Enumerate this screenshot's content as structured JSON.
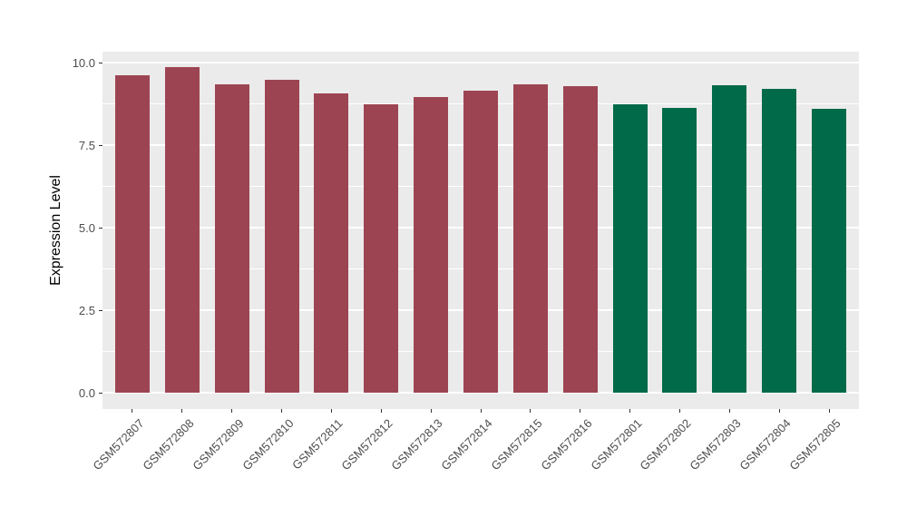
{
  "chart_data": {
    "type": "bar",
    "title": "",
    "xlabel": "",
    "ylabel": "Expression Level",
    "categories": [
      "GSM572807",
      "GSM572808",
      "GSM572809",
      "GSM572810",
      "GSM572811",
      "GSM572812",
      "GSM572813",
      "GSM572814",
      "GSM572815",
      "GSM572816",
      "GSM572801",
      "GSM572802",
      "GSM572803",
      "GSM572804",
      "GSM572805"
    ],
    "values": [
      9.62,
      9.86,
      9.34,
      9.5,
      9.07,
      8.75,
      8.97,
      9.16,
      9.35,
      9.3,
      8.75,
      8.64,
      9.33,
      9.22,
      8.61
    ],
    "bar_colors": [
      "#9D4452",
      "#9D4452",
      "#9D4452",
      "#9D4452",
      "#9D4452",
      "#9D4452",
      "#9D4452",
      "#9D4452",
      "#9D4452",
      "#9D4452",
      "#016A49",
      "#016A49",
      "#016A49",
      "#016A49",
      "#016A49"
    ],
    "group_colors": {
      "maroon_group": "#9D4452",
      "green_group": "#016A49"
    },
    "ytick_values": [
      0,
      2.5,
      5,
      7.5,
      10
    ],
    "ytick_labels": [
      "0.0",
      "2.5",
      "5.0",
      "7.5",
      "10.0"
    ],
    "ytick_minor_values": [
      1.25,
      3.75,
      6.25,
      8.75
    ],
    "ylim": [
      -0.49,
      10.34
    ],
    "grid": "major+minor",
    "legend": "none",
    "panel_background": "#EBEBEB",
    "grid_color": "#FFFFFF",
    "axis_text_color": "#4D4D4D",
    "axis_title_color": "#000000"
  }
}
